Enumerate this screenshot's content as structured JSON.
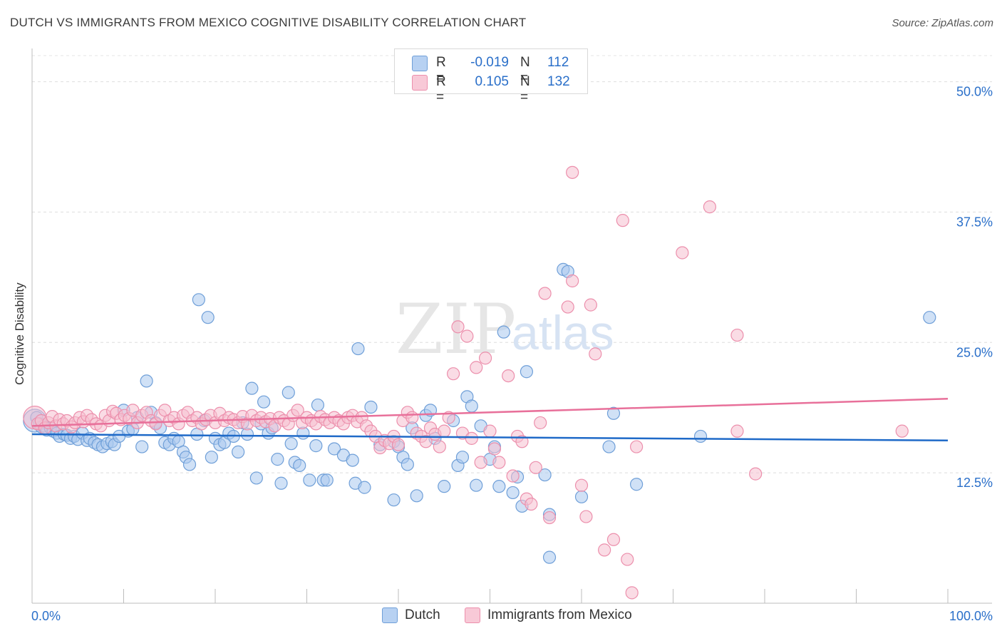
{
  "title": "DUTCH VS IMMIGRANTS FROM MEXICO COGNITIVE DISABILITY CORRELATION CHART",
  "source": "Source: ZipAtlas.com",
  "watermark": {
    "zip": "ZIP",
    "atlas": "atlas"
  },
  "legend": {
    "rows": [
      {
        "r_label": "R =",
        "r_value": "-0.019",
        "n_label": "N =",
        "n_value": "112"
      },
      {
        "r_label": "R =",
        "r_value": "0.105",
        "n_label": "N =",
        "n_value": "132"
      }
    ]
  },
  "chart_data": {
    "type": "scatter",
    "title": "DUTCH VS IMMIGRANTS FROM MEXICO COGNITIVE DISABILITY CORRELATION CHART",
    "xlabel": "",
    "ylabel": "Cognitive Disability",
    "xlim": [
      0,
      100
    ],
    "ylim": [
      0,
      52.5
    ],
    "x_tick_labels": [
      "0.0%",
      "100.0%"
    ],
    "y_ticks": [
      12.5,
      25.0,
      37.5,
      50.0
    ],
    "y_tick_labels": [
      "12.5%",
      "25.0%",
      "37.5%",
      "50.0%"
    ],
    "grid": true,
    "legend_position": "top-center",
    "colors": {
      "dutch_fill": "#a9c8ef",
      "dutch_stroke": "#6f9fd8",
      "dutch_line": "#1f6ac8",
      "mexico_fill": "#f6bfd0",
      "mexico_stroke": "#ec8fac",
      "mexico_line": "#e8709a",
      "tick_label": "#2a6fc9"
    },
    "series": [
      {
        "name": "Dutch",
        "trend": {
          "x": [
            0,
            100
          ],
          "y": [
            16.2,
            15.6
          ]
        },
        "points": [
          [
            0.3,
            17.5
          ],
          [
            0.5,
            17.8
          ],
          [
            0.8,
            17.2
          ],
          [
            1.0,
            16.9
          ],
          [
            1.3,
            17.0
          ],
          [
            1.6,
            16.6
          ],
          [
            2.0,
            16.8
          ],
          [
            2.3,
            16.5
          ],
          [
            2.7,
            16.3
          ],
          [
            3.0,
            16.0
          ],
          [
            3.5,
            16.2
          ],
          [
            3.8,
            16.1
          ],
          [
            4.2,
            15.8
          ],
          [
            4.6,
            16.0
          ],
          [
            5.0,
            15.7
          ],
          [
            5.5,
            16.3
          ],
          [
            6.0,
            15.6
          ],
          [
            6.3,
            15.8
          ],
          [
            6.8,
            15.4
          ],
          [
            7.2,
            15.2
          ],
          [
            7.7,
            15.0
          ],
          [
            8.2,
            15.3
          ],
          [
            8.7,
            15.5
          ],
          [
            9.0,
            15.2
          ],
          [
            9.5,
            16.0
          ],
          [
            10.0,
            18.5
          ],
          [
            10.5,
            16.5
          ],
          [
            11.0,
            16.7
          ],
          [
            11.5,
            17.8
          ],
          [
            12.0,
            15.0
          ],
          [
            12.5,
            21.3
          ],
          [
            13.0,
            18.3
          ],
          [
            13.5,
            17.3
          ],
          [
            14.0,
            16.8
          ],
          [
            14.5,
            15.4
          ],
          [
            15.0,
            15.2
          ],
          [
            15.5,
            15.8
          ],
          [
            16.0,
            15.5
          ],
          [
            16.5,
            14.5
          ],
          [
            16.8,
            14.0
          ],
          [
            17.2,
            13.3
          ],
          [
            18.0,
            16.2
          ],
          [
            18.2,
            29.1
          ],
          [
            18.8,
            17.5
          ],
          [
            19.2,
            27.4
          ],
          [
            19.6,
            14.0
          ],
          [
            20.0,
            15.8
          ],
          [
            20.5,
            15.2
          ],
          [
            21.0,
            15.4
          ],
          [
            21.5,
            16.3
          ],
          [
            22.0,
            16.0
          ],
          [
            22.5,
            14.5
          ],
          [
            23.0,
            17.3
          ],
          [
            23.5,
            16.2
          ],
          [
            24.0,
            20.6
          ],
          [
            24.5,
            12.0
          ],
          [
            25.0,
            17.2
          ],
          [
            25.3,
            19.3
          ],
          [
            25.8,
            16.3
          ],
          [
            26.2,
            16.8
          ],
          [
            26.8,
            13.8
          ],
          [
            27.2,
            11.5
          ],
          [
            28.0,
            20.2
          ],
          [
            28.3,
            15.3
          ],
          [
            28.7,
            13.5
          ],
          [
            29.2,
            13.2
          ],
          [
            29.6,
            16.3
          ],
          [
            30.3,
            11.8
          ],
          [
            31.0,
            15.1
          ],
          [
            31.2,
            19.0
          ],
          [
            31.8,
            11.8
          ],
          [
            32.2,
            11.8
          ],
          [
            33.0,
            14.8
          ],
          [
            34.0,
            14.2
          ],
          [
            35.0,
            13.7
          ],
          [
            35.3,
            11.5
          ],
          [
            35.6,
            24.4
          ],
          [
            36.3,
            11.1
          ],
          [
            37.0,
            18.8
          ],
          [
            38.0,
            15.2
          ],
          [
            39.5,
            15.5
          ],
          [
            39.5,
            9.9
          ],
          [
            40.0,
            15.0
          ],
          [
            40.5,
            14.0
          ],
          [
            41.0,
            13.3
          ],
          [
            41.5,
            16.8
          ],
          [
            42.0,
            10.3
          ],
          [
            43.0,
            18.0
          ],
          [
            43.5,
            18.5
          ],
          [
            44.0,
            15.8
          ],
          [
            45.0,
            11.2
          ],
          [
            46.0,
            17.5
          ],
          [
            46.5,
            13.2
          ],
          [
            47.0,
            14.0
          ],
          [
            47.5,
            19.8
          ],
          [
            48.0,
            18.9
          ],
          [
            48.5,
            11.3
          ],
          [
            49.0,
            17.0
          ],
          [
            50.0,
            13.8
          ],
          [
            50.5,
            15.0
          ],
          [
            51.0,
            11.2
          ],
          [
            51.5,
            26.0
          ],
          [
            52.5,
            10.6
          ],
          [
            53.0,
            12.1
          ],
          [
            53.5,
            9.3
          ],
          [
            54.0,
            22.2
          ],
          [
            56.5,
            8.5
          ],
          [
            56.0,
            12.3
          ],
          [
            56.5,
            4.4
          ],
          [
            58.0,
            32.0
          ],
          [
            58.5,
            31.8
          ],
          [
            60.0,
            10.2
          ],
          [
            63.0,
            15.0
          ],
          [
            63.5,
            18.2
          ],
          [
            66.0,
            11.4
          ],
          [
            98.0,
            27.4
          ],
          [
            73.0,
            16.0
          ]
        ]
      },
      {
        "name": "Immigrants from Mexico",
        "trend": {
          "x": [
            0,
            100
          ],
          "y": [
            17.0,
            19.6
          ]
        },
        "points": [
          [
            0.3,
            17.8
          ],
          [
            0.6,
            17.2
          ],
          [
            1.0,
            17.5
          ],
          [
            1.4,
            16.8
          ],
          [
            1.8,
            17.3
          ],
          [
            2.2,
            17.9
          ],
          [
            2.6,
            17.0
          ],
          [
            3.0,
            17.6
          ],
          [
            3.4,
            17.2
          ],
          [
            3.8,
            17.5
          ],
          [
            4.3,
            16.9
          ],
          [
            4.7,
            17.3
          ],
          [
            5.2,
            17.8
          ],
          [
            5.6,
            17.4
          ],
          [
            6.0,
            18.0
          ],
          [
            6.5,
            17.6
          ],
          [
            7.0,
            17.2
          ],
          [
            7.5,
            17.0
          ],
          [
            8.0,
            18.0
          ],
          [
            8.4,
            17.5
          ],
          [
            8.8,
            18.4
          ],
          [
            9.2,
            18.2
          ],
          [
            9.7,
            17.6
          ],
          [
            10.1,
            18.0
          ],
          [
            10.6,
            17.7
          ],
          [
            11.0,
            18.5
          ],
          [
            11.5,
            17.3
          ],
          [
            12.0,
            18.0
          ],
          [
            12.5,
            18.3
          ],
          [
            13.0,
            17.5
          ],
          [
            13.5,
            17.2
          ],
          [
            14.0,
            18.0
          ],
          [
            14.5,
            18.5
          ],
          [
            15.0,
            17.5
          ],
          [
            15.5,
            17.8
          ],
          [
            16.0,
            17.2
          ],
          [
            16.5,
            18.0
          ],
          [
            17.0,
            18.3
          ],
          [
            17.5,
            17.5
          ],
          [
            18.0,
            17.8
          ],
          [
            18.5,
            17.2
          ],
          [
            19.0,
            17.6
          ],
          [
            19.5,
            18.0
          ],
          [
            20.0,
            17.3
          ],
          [
            20.5,
            18.2
          ],
          [
            21.0,
            17.5
          ],
          [
            21.5,
            17.8
          ],
          [
            22.0,
            17.6
          ],
          [
            22.5,
            17.3
          ],
          [
            23.0,
            17.9
          ],
          [
            23.5,
            17.2
          ],
          [
            24.0,
            18.0
          ],
          [
            24.5,
            17.5
          ],
          [
            25.0,
            17.8
          ],
          [
            25.5,
            17.4
          ],
          [
            26.0,
            17.7
          ],
          [
            26.5,
            17.0
          ],
          [
            27.0,
            17.8
          ],
          [
            27.5,
            17.5
          ],
          [
            28.0,
            17.2
          ],
          [
            28.5,
            18.0
          ],
          [
            29.0,
            18.5
          ],
          [
            29.5,
            17.3
          ],
          [
            30.0,
            17.8
          ],
          [
            30.5,
            17.5
          ],
          [
            31.0,
            17.2
          ],
          [
            31.5,
            17.9
          ],
          [
            32.0,
            17.6
          ],
          [
            32.5,
            17.3
          ],
          [
            33.0,
            17.8
          ],
          [
            33.5,
            17.5
          ],
          [
            34.0,
            17.2
          ],
          [
            34.5,
            17.8
          ],
          [
            35.0,
            18.0
          ],
          [
            35.5,
            17.4
          ],
          [
            36.0,
            17.8
          ],
          [
            36.5,
            17.0
          ],
          [
            37.0,
            16.5
          ],
          [
            37.5,
            16.0
          ],
          [
            38.0,
            14.9
          ],
          [
            38.5,
            15.6
          ],
          [
            39.0,
            15.3
          ],
          [
            39.5,
            16.0
          ],
          [
            40.0,
            15.2
          ],
          [
            40.5,
            17.5
          ],
          [
            41.0,
            18.3
          ],
          [
            41.5,
            17.8
          ],
          [
            42.0,
            16.3
          ],
          [
            42.5,
            16.0
          ],
          [
            43.0,
            15.5
          ],
          [
            43.5,
            16.8
          ],
          [
            44.0,
            16.2
          ],
          [
            44.5,
            15.0
          ],
          [
            45.0,
            16.5
          ],
          [
            45.5,
            17.8
          ],
          [
            46.0,
            22.0
          ],
          [
            46.5,
            26.5
          ],
          [
            47.0,
            16.3
          ],
          [
            47.5,
            25.6
          ],
          [
            48.0,
            15.8
          ],
          [
            48.5,
            22.6
          ],
          [
            49.0,
            13.5
          ],
          [
            49.5,
            23.5
          ],
          [
            50.0,
            16.5
          ],
          [
            50.5,
            14.8
          ],
          [
            51.0,
            13.5
          ],
          [
            52.0,
            21.8
          ],
          [
            52.5,
            12.2
          ],
          [
            53.0,
            16.0
          ],
          [
            53.5,
            15.5
          ],
          [
            54.0,
            10.0
          ],
          [
            54.5,
            9.5
          ],
          [
            55.0,
            13.0
          ],
          [
            55.5,
            17.3
          ],
          [
            56.0,
            29.7
          ],
          [
            56.5,
            8.2
          ],
          [
            58.5,
            28.4
          ],
          [
            59.0,
            30.9
          ],
          [
            60.0,
            11.3
          ],
          [
            60.5,
            8.3
          ],
          [
            61.0,
            28.6
          ],
          [
            61.5,
            23.9
          ],
          [
            62.5,
            5.1
          ],
          [
            63.5,
            6.1
          ],
          [
            64.5,
            36.7
          ],
          [
            65.0,
            4.2
          ],
          [
            65.5,
            1.0
          ],
          [
            66.0,
            15.0
          ],
          [
            71.0,
            33.6
          ],
          [
            74.0,
            38.0
          ],
          [
            59.0,
            41.3
          ],
          [
            77.0,
            25.7
          ],
          [
            77.0,
            16.5
          ],
          [
            79.0,
            12.4
          ],
          [
            95.0,
            16.5
          ]
        ]
      }
    ]
  },
  "bottom_legend": [
    {
      "label": "Dutch"
    },
    {
      "label": "Immigrants from Mexico"
    }
  ]
}
